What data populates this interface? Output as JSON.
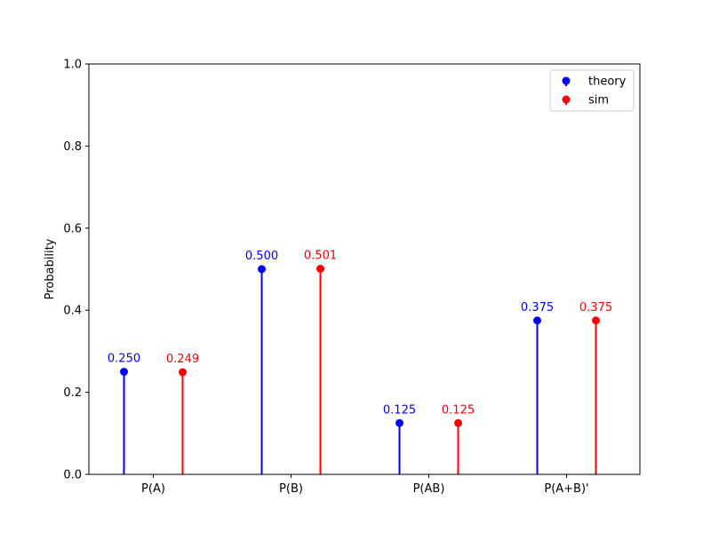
{
  "chart_data": {
    "type": "stem",
    "categories": [
      "P(A)",
      "P(B)",
      "P(AB)",
      "P(A+B)'"
    ],
    "series": [
      {
        "name": "theory",
        "color": "#0000ff",
        "values": [
          0.25,
          0.5,
          0.125,
          0.375
        ],
        "labels": [
          "0.250",
          "0.500",
          "0.125",
          "0.375"
        ]
      },
      {
        "name": "sim",
        "color": "#ff0000",
        "values": [
          0.249,
          0.501,
          0.125,
          0.375
        ],
        "labels": [
          "0.249",
          "0.501",
          "0.125",
          "0.375"
        ]
      }
    ],
    "title": "",
    "xlabel": "",
    "ylabel": "Probability",
    "ylim": [
      0,
      1.0
    ],
    "yticks": [
      0.0,
      0.2,
      0.4,
      0.6,
      0.8,
      1.0
    ],
    "ytick_labels": [
      "0.0",
      "0.2",
      "0.4",
      "0.6",
      "0.8",
      "1.0"
    ],
    "grid": false,
    "legend_position": "top-right"
  }
}
